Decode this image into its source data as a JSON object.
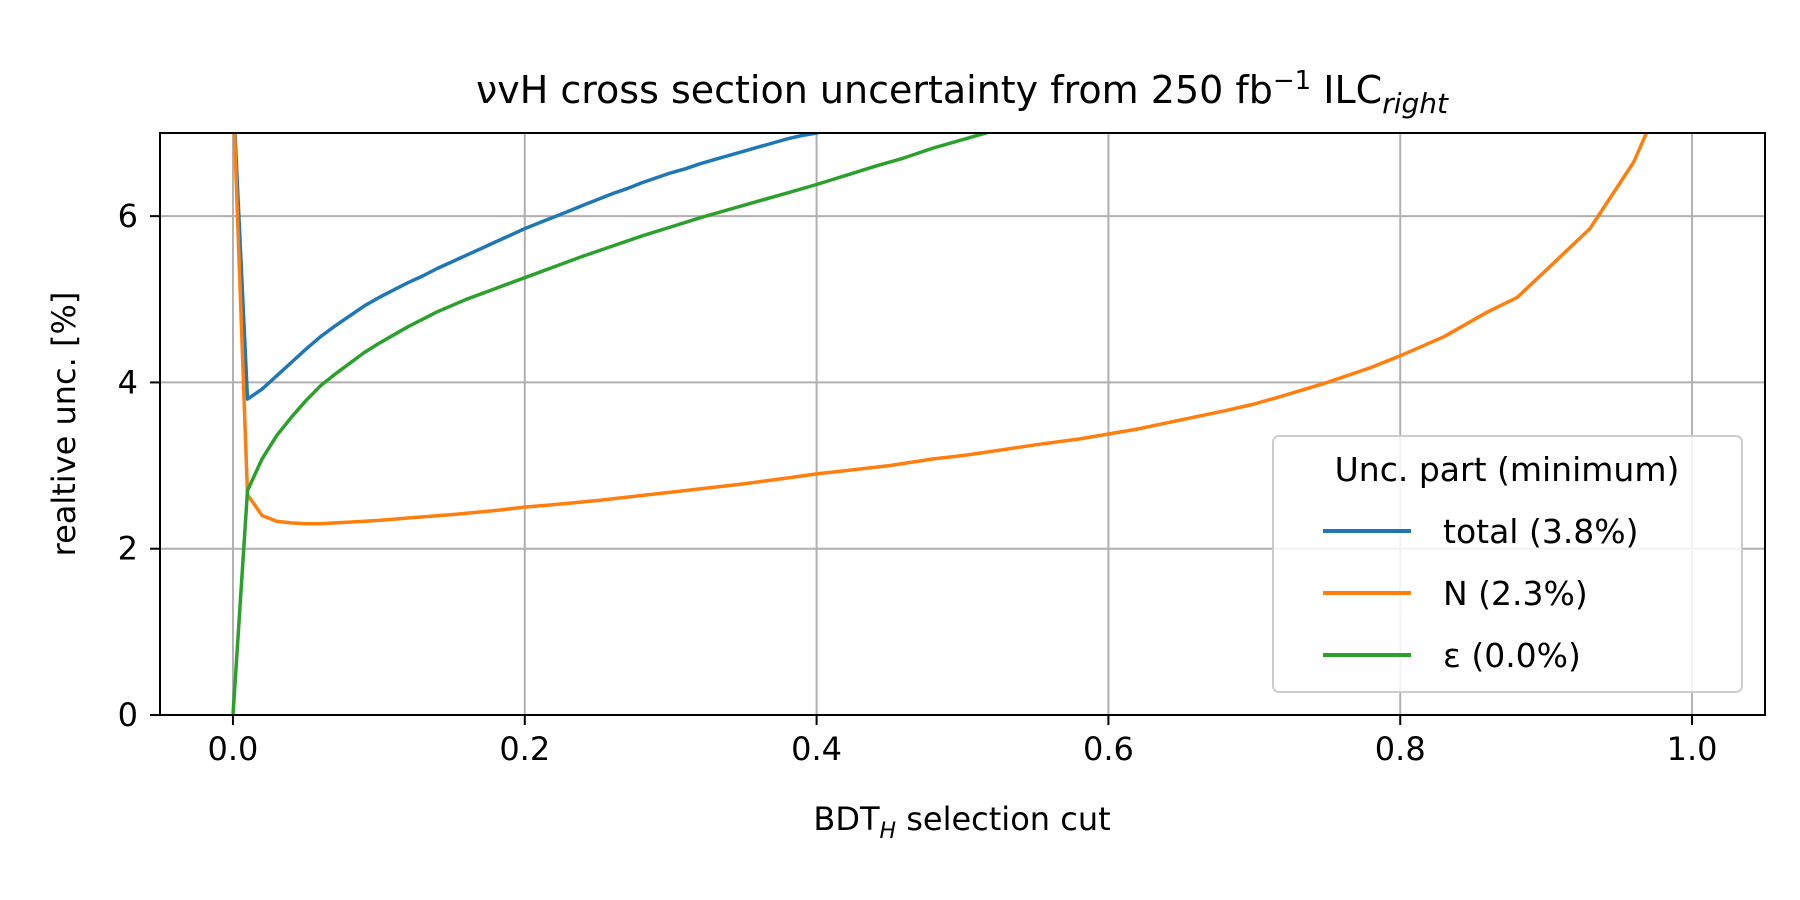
{
  "chart_data": {
    "type": "line",
    "title": {
      "main": "νvH cross section uncertainty from 250 fb",
      "sup": "−1",
      "mid": " ILC",
      "sub": "right"
    },
    "xlabel": {
      "main": "BDT",
      "sub": "H",
      "rest": " selection cut"
    },
    "ylabel": "realtive unc. [%]",
    "xlim": [
      -0.05,
      1.05
    ],
    "ylim": [
      0,
      7
    ],
    "xticks": [
      0.0,
      0.2,
      0.4,
      0.6,
      0.8,
      1.0
    ],
    "xtick_labels": [
      "0.0",
      "0.2",
      "0.4",
      "0.6",
      "0.8",
      "1.0"
    ],
    "yticks": [
      0,
      2,
      4,
      6
    ],
    "ytick_labels": [
      "0",
      "2",
      "4",
      "6"
    ],
    "grid": true,
    "legend": {
      "title": "Unc. part (minimum)",
      "placement": "lower-right"
    },
    "series": [
      {
        "name": "total (3.8%)",
        "color": "#1f77b4",
        "x": [
          0.0,
          0.01,
          0.02,
          0.03,
          0.04,
          0.05,
          0.06,
          0.07,
          0.08,
          0.09,
          0.1,
          0.11,
          0.12,
          0.13,
          0.14,
          0.15,
          0.16,
          0.17,
          0.18,
          0.19,
          0.2,
          0.21,
          0.22,
          0.23,
          0.24,
          0.25,
          0.26,
          0.27,
          0.28,
          0.29,
          0.3,
          0.31,
          0.32,
          0.33,
          0.34,
          0.35,
          0.36,
          0.37,
          0.38,
          0.39,
          0.4,
          0.41
        ],
        "y": [
          7.5,
          3.8,
          3.92,
          4.08,
          4.24,
          4.4,
          4.55,
          4.68,
          4.8,
          4.92,
          5.02,
          5.11,
          5.2,
          5.28,
          5.37,
          5.45,
          5.53,
          5.61,
          5.69,
          5.77,
          5.85,
          5.92,
          5.99,
          6.06,
          6.13,
          6.2,
          6.27,
          6.33,
          6.4,
          6.46,
          6.52,
          6.57,
          6.63,
          6.68,
          6.73,
          6.78,
          6.83,
          6.88,
          6.93,
          6.97,
          7.0,
          7.05
        ]
      },
      {
        "name": "N (2.3%)",
        "color": "#ff7f0e",
        "x": [
          0.0,
          0.01,
          0.02,
          0.03,
          0.04,
          0.05,
          0.06,
          0.07,
          0.08,
          0.1,
          0.12,
          0.15,
          0.18,
          0.2,
          0.22,
          0.25,
          0.28,
          0.3,
          0.32,
          0.35,
          0.38,
          0.4,
          0.42,
          0.45,
          0.48,
          0.5,
          0.52,
          0.55,
          0.58,
          0.6,
          0.62,
          0.65,
          0.68,
          0.7,
          0.72,
          0.75,
          0.78,
          0.8,
          0.83,
          0.86,
          0.88,
          0.9,
          0.93,
          0.96,
          0.97
        ],
        "y": [
          7.5,
          2.65,
          2.4,
          2.33,
          2.31,
          2.3,
          2.3,
          2.31,
          2.32,
          2.34,
          2.37,
          2.41,
          2.46,
          2.5,
          2.53,
          2.58,
          2.64,
          2.68,
          2.72,
          2.78,
          2.85,
          2.9,
          2.94,
          3.0,
          3.08,
          3.12,
          3.17,
          3.25,
          3.32,
          3.38,
          3.44,
          3.55,
          3.66,
          3.74,
          3.84,
          4.0,
          4.18,
          4.32,
          4.55,
          4.85,
          5.02,
          5.35,
          5.85,
          6.65,
          7.05
        ]
      },
      {
        "name": "ε (0.0%)",
        "color": "#2ca02c",
        "x": [
          0.0,
          0.01,
          0.02,
          0.03,
          0.04,
          0.05,
          0.06,
          0.07,
          0.08,
          0.09,
          0.1,
          0.12,
          0.14,
          0.16,
          0.18,
          0.2,
          0.22,
          0.24,
          0.26,
          0.28,
          0.3,
          0.32,
          0.34,
          0.36,
          0.38,
          0.4,
          0.42,
          0.44,
          0.46,
          0.48,
          0.5,
          0.52
        ],
        "y": [
          0.0,
          2.7,
          3.08,
          3.36,
          3.58,
          3.78,
          3.96,
          4.1,
          4.23,
          4.36,
          4.47,
          4.67,
          4.85,
          5.0,
          5.13,
          5.26,
          5.39,
          5.52,
          5.64,
          5.76,
          5.87,
          5.98,
          6.08,
          6.18,
          6.28,
          6.38,
          6.49,
          6.6,
          6.7,
          6.82,
          6.92,
          7.02
        ]
      }
    ]
  }
}
